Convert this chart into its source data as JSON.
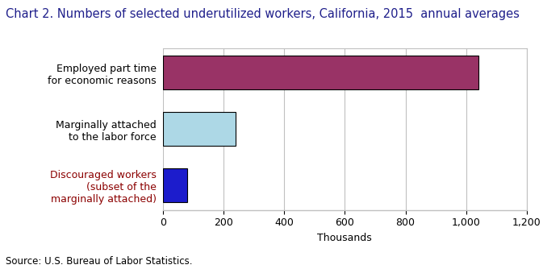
{
  "title": "Chart 2. Numbers of selected underutilized workers, California, 2015  annual averages",
  "categories": [
    "Discouraged workers\n(subset of the\nmarginally attached)",
    "Marginally attached\nto the labor force",
    "Employed part time\nfor economic reasons"
  ],
  "values": [
    80,
    240,
    1040
  ],
  "bar_colors": [
    "#1C1CCC",
    "#ADD8E6",
    "#993366"
  ],
  "bar_edgecolors": [
    "#000000",
    "#000000",
    "#000000"
  ],
  "xlabel": "Thousands",
  "xlim": [
    0,
    1200
  ],
  "xticks": [
    0,
    200,
    400,
    600,
    800,
    1000,
    1200
  ],
  "grid_color": "#C0C0C0",
  "background_color": "#FFFFFF",
  "source_text": "Source: U.S. Bureau of Labor Statistics.",
  "title_fontsize": 10.5,
  "title_color": "#1F1F8B",
  "label_fontsize": 9,
  "tick_fontsize": 9,
  "source_fontsize": 8.5,
  "xlabel_fontsize": 9,
  "label_color_discouraged": "#8B0000",
  "label_color_marginally": "#000000",
  "label_color_employed": "#000000",
  "bar_height": 0.6
}
